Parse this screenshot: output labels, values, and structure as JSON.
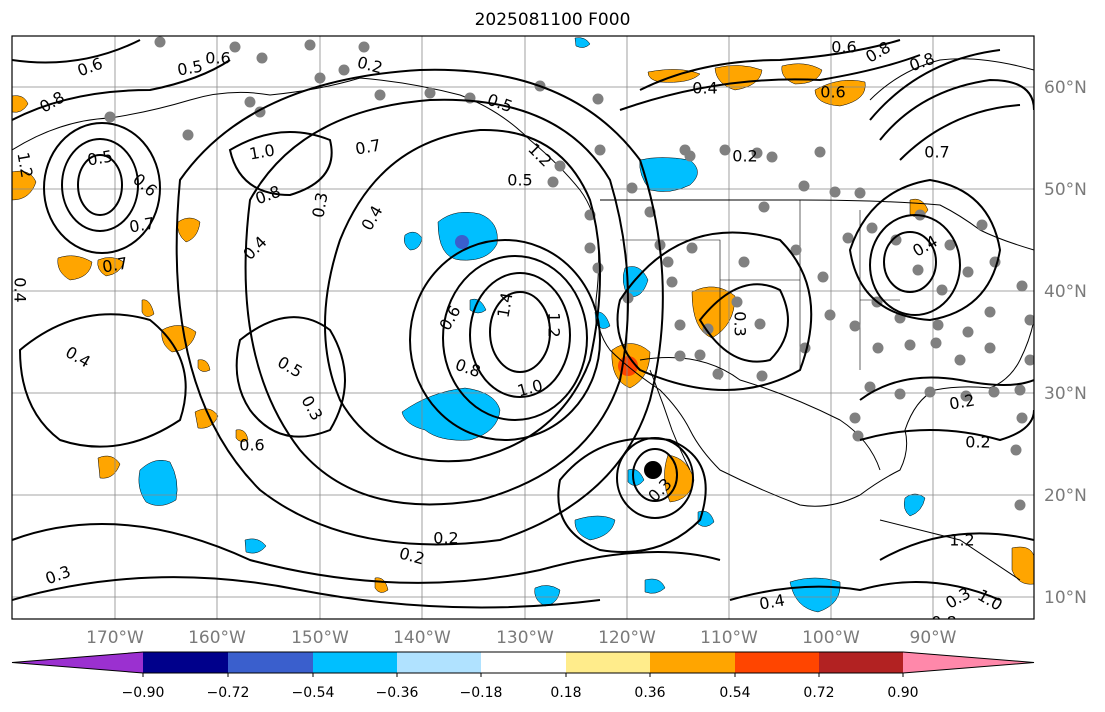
{
  "map": {
    "title": "2025081100 F000",
    "lon_labels": [
      "170°W",
      "160°W",
      "150°W",
      "140°W",
      "130°W",
      "120°W",
      "110°W",
      "100°W",
      "90°W"
    ],
    "lat_labels": [
      "60°N",
      "50°N",
      "40°N",
      "30°N",
      "20°N",
      "10°N"
    ]
  },
  "colorbar": {
    "tick_labels": [
      "−0.90",
      "−0.72",
      "−0.54",
      "−0.36",
      "−0.18",
      "0.18",
      "0.36",
      "0.54",
      "0.72",
      "0.90"
    ],
    "colors": [
      "#9b30d0",
      "#00008b",
      "#3a5fcd",
      "#00bfff",
      "#b0e2ff",
      "#ffffff",
      "#ffec8b",
      "#ffa500",
      "#ff4500",
      "#b22222",
      "#ff88aa"
    ]
  },
  "contour_labels": [
    "0.6",
    "0.5",
    "0.6",
    "0.2",
    "0.8",
    "1.2",
    "0.5",
    "0.6",
    "1.0",
    "0.7",
    "0.8",
    "0.3",
    "0.4",
    "0.7",
    "0.5",
    "1.2",
    "0.4",
    "0.7",
    "0.4",
    "1.4",
    "1.2",
    "0.6",
    "0.8",
    "1.0",
    "0.4",
    "0.5",
    "0.3",
    "0.6",
    "0.3",
    "0.2",
    "0.2",
    "0.3",
    "0.4",
    "0.3",
    "0.8",
    "0.5",
    "0.4",
    "0.6",
    "0.2",
    "0.3",
    "0.4",
    "0.2",
    "0.2",
    "1.2",
    "1.0",
    "0.6",
    "0.8",
    "0.8",
    "0.7"
  ]
}
